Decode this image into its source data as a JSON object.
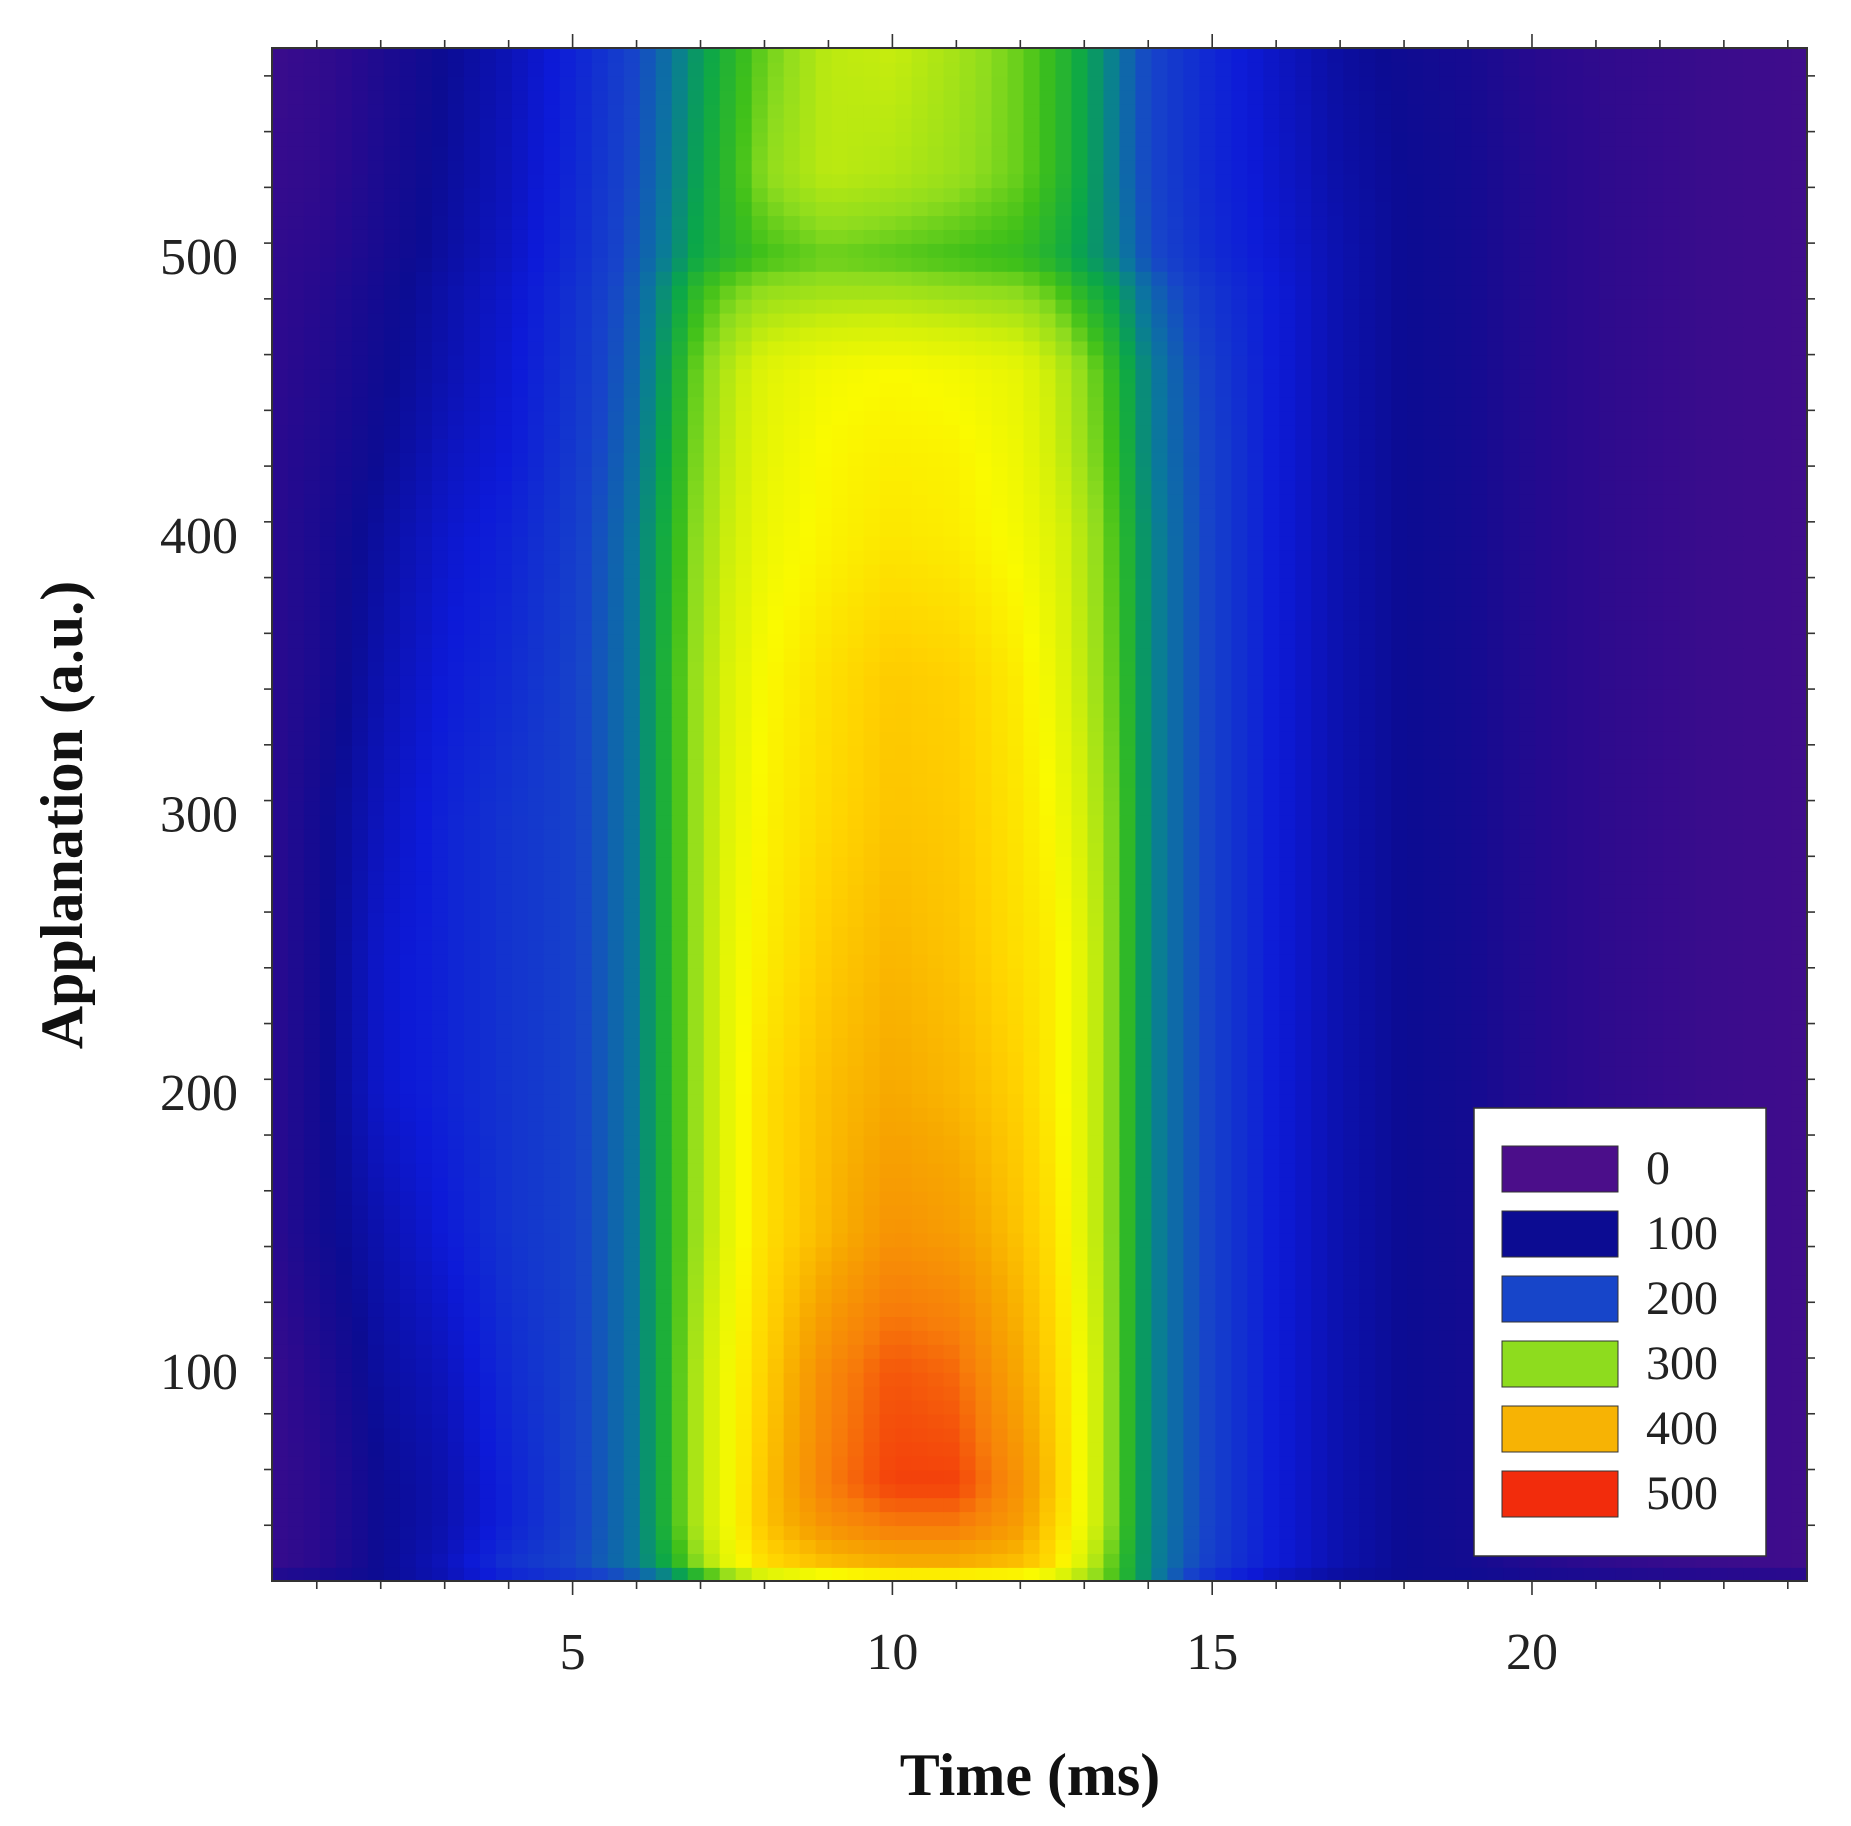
{
  "chart_data": {
    "type": "heatmap",
    "title": "",
    "xlabel": "Time (ms)",
    "ylabel": "Applanation (a.u.)",
    "xlim": [
      0.3,
      24.3
    ],
    "ylim": [
      25,
      575
    ],
    "x_ticks": [
      5,
      10,
      15,
      20
    ],
    "y_ticks": [
      100,
      200,
      300,
      400,
      500
    ],
    "x_minor_step": 1,
    "y_minor_step": 20,
    "grid": false,
    "legend_position": "bottom-right",
    "legend": [
      {
        "label": "0",
        "color": "#4b0e8a"
      },
      {
        "label": "100",
        "color": "#0c0c92"
      },
      {
        "label": "200",
        "color": "#1745c9"
      },
      {
        "label": "300",
        "color": "#8edc1e"
      },
      {
        "label": "400",
        "color": "#f7b304"
      },
      {
        "label": "500",
        "color": "#f22c0c"
      }
    ],
    "colorscale": [
      [
        0,
        "#4b0e8a"
      ],
      [
        60,
        "#2a0a8e"
      ],
      [
        100,
        "#0c0c92"
      ],
      [
        150,
        "#0d1ad8"
      ],
      [
        200,
        "#1745c9"
      ],
      [
        230,
        "#0a7a9a"
      ],
      [
        255,
        "#0aa64a"
      ],
      [
        280,
        "#3fc01a"
      ],
      [
        300,
        "#8edc1e"
      ],
      [
        330,
        "#d2f00a"
      ],
      [
        360,
        "#fafa00"
      ],
      [
        390,
        "#ffd200"
      ],
      [
        420,
        "#f7a800"
      ],
      [
        460,
        "#f77d0a"
      ],
      [
        500,
        "#f22c0c"
      ]
    ],
    "x": [
      0.3,
      1,
      2,
      3,
      4,
      5,
      6,
      6.5,
      7,
      7.5,
      8,
      9,
      10,
      11,
      12,
      12.5,
      13,
      13.5,
      14,
      15,
      16,
      17,
      18,
      19,
      20,
      21,
      22,
      23,
      24.3
    ],
    "y": [
      25,
      30,
      45,
      60,
      100,
      150,
      200,
      250,
      300,
      350,
      400,
      430,
      460,
      490,
      500,
      530,
      575
    ],
    "z": [
      [
        100,
        100,
        100,
        120,
        150,
        170,
        200,
        220,
        250,
        270,
        300,
        320,
        330,
        330,
        330,
        320,
        300,
        280,
        240,
        160,
        120,
        100,
        100,
        100,
        100,
        100,
        100,
        100,
        100
      ],
      [
        40,
        60,
        100,
        130,
        180,
        200,
        230,
        260,
        300,
        350,
        380,
        400,
        410,
        410,
        400,
        380,
        330,
        280,
        240,
        190,
        150,
        120,
        100,
        90,
        70,
        55,
        40,
        30,
        20
      ],
      [
        40,
        60,
        100,
        120,
        160,
        195,
        230,
        270,
        320,
        360,
        400,
        440,
        460,
        460,
        430,
        390,
        350,
        290,
        240,
        195,
        150,
        120,
        100,
        90,
        70,
        55,
        40,
        30,
        20
      ],
      [
        40,
        60,
        100,
        120,
        160,
        195,
        230,
        270,
        320,
        360,
        400,
        460,
        490,
        490,
        440,
        400,
        350,
        290,
        240,
        195,
        150,
        120,
        100,
        90,
        70,
        55,
        40,
        30,
        20
      ],
      [
        40,
        70,
        110,
        130,
        170,
        195,
        230,
        270,
        320,
        360,
        390,
        450,
        480,
        470,
        420,
        390,
        350,
        290,
        240,
        195,
        150,
        120,
        100,
        90,
        70,
        55,
        40,
        30,
        20
      ],
      [
        60,
        90,
        120,
        150,
        180,
        195,
        230,
        270,
        310,
        350,
        380,
        410,
        440,
        430,
        400,
        380,
        340,
        290,
        240,
        195,
        150,
        120,
        100,
        90,
        70,
        55,
        40,
        30,
        20
      ],
      [
        60,
        90,
        140,
        160,
        180,
        195,
        230,
        270,
        310,
        350,
        380,
        405,
        420,
        410,
        390,
        370,
        340,
        290,
        240,
        195,
        150,
        120,
        100,
        90,
        70,
        55,
        40,
        30,
        20
      ],
      [
        60,
        90,
        140,
        160,
        180,
        195,
        230,
        270,
        310,
        350,
        370,
        395,
        410,
        400,
        380,
        370,
        340,
        290,
        240,
        195,
        150,
        120,
        100,
        90,
        70,
        55,
        40,
        30,
        20
      ],
      [
        60,
        90,
        130,
        160,
        180,
        195,
        230,
        270,
        310,
        345,
        365,
        385,
        400,
        395,
        375,
        360,
        330,
        290,
        240,
        195,
        150,
        120,
        100,
        90,
        70,
        55,
        40,
        30,
        20
      ],
      [
        60,
        80,
        120,
        150,
        170,
        195,
        230,
        270,
        310,
        340,
        360,
        380,
        395,
        390,
        370,
        350,
        320,
        285,
        240,
        195,
        150,
        120,
        100,
        90,
        70,
        55,
        40,
        30,
        20
      ],
      [
        60,
        80,
        110,
        140,
        160,
        190,
        230,
        265,
        305,
        330,
        350,
        365,
        375,
        370,
        355,
        340,
        315,
        280,
        240,
        195,
        150,
        120,
        100,
        90,
        70,
        55,
        40,
        30,
        20
      ],
      [
        60,
        75,
        100,
        130,
        150,
        185,
        225,
        260,
        300,
        325,
        345,
        362,
        368,
        365,
        350,
        330,
        305,
        275,
        235,
        195,
        150,
        120,
        100,
        90,
        70,
        55,
        40,
        30,
        20
      ],
      [
        55,
        70,
        95,
        120,
        145,
        180,
        220,
        255,
        295,
        320,
        340,
        355,
        360,
        355,
        345,
        325,
        300,
        270,
        235,
        190,
        150,
        120,
        100,
        90,
        70,
        55,
        40,
        30,
        20
      ],
      [
        50,
        65,
        90,
        115,
        140,
        175,
        215,
        245,
        275,
        290,
        300,
        305,
        305,
        300,
        295,
        285,
        265,
        250,
        220,
        180,
        150,
        120,
        100,
        90,
        70,
        55,
        40,
        30,
        20
      ],
      [
        50,
        60,
        85,
        110,
        135,
        170,
        210,
        235,
        260,
        270,
        280,
        290,
        285,
        280,
        275,
        265,
        250,
        235,
        205,
        170,
        145,
        120,
        100,
        90,
        70,
        55,
        40,
        30,
        20
      ],
      [
        40,
        50,
        80,
        105,
        130,
        165,
        205,
        230,
        255,
        275,
        300,
        320,
        315,
        305,
        290,
        275,
        255,
        230,
        200,
        165,
        140,
        115,
        100,
        90,
        70,
        55,
        40,
        30,
        20
      ],
      [
        30,
        45,
        75,
        100,
        125,
        160,
        200,
        225,
        250,
        270,
        290,
        320,
        325,
        310,
        290,
        275,
        255,
        230,
        200,
        165,
        135,
        110,
        95,
        85,
        65,
        50,
        40,
        30,
        20
      ]
    ]
  }
}
